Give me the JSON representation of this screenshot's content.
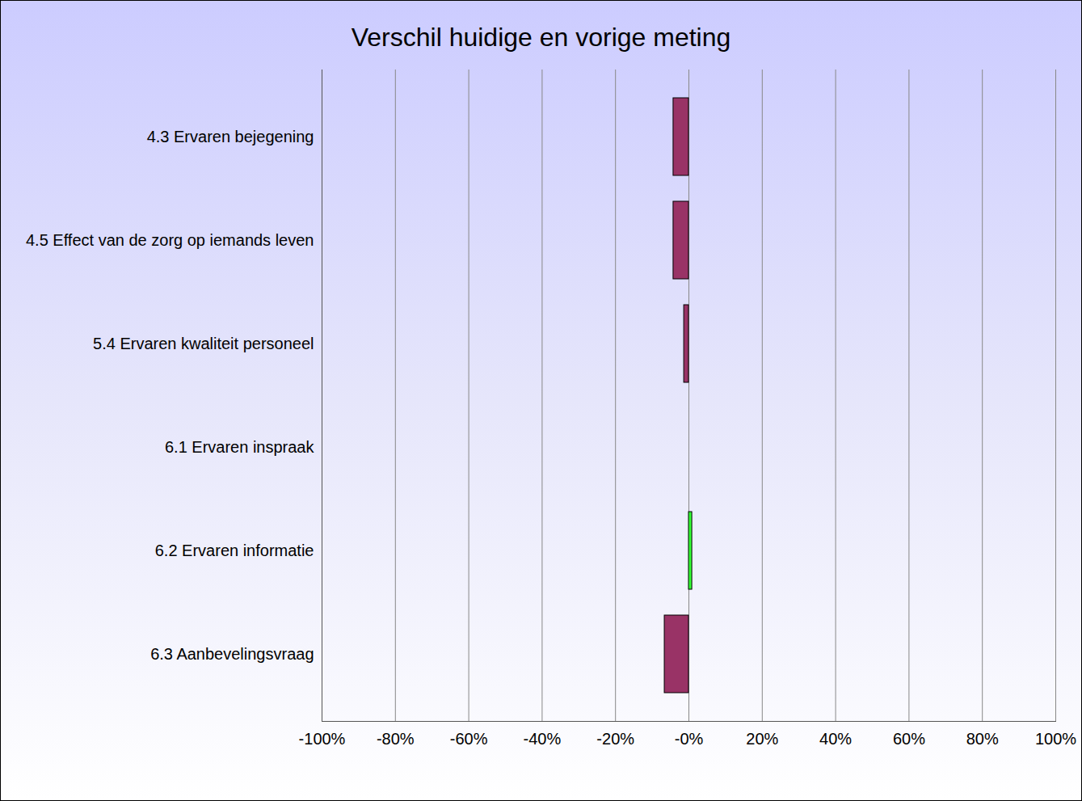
{
  "chart_data": {
    "type": "bar",
    "title": "Verschil huidige en vorige meting",
    "orientation": "horizontal",
    "categories": [
      "4.3 Ervaren bejegening",
      "4.5 Effect van de zorg op iemands leven",
      "5.4 Ervaren kwaliteit personeel",
      "6.1 Ervaren inspraak",
      "6.2 Ervaren informatie",
      "6.3 Aanbevelingsvraag"
    ],
    "values": [
      -4.2,
      -4.2,
      -1.3,
      0,
      0.9,
      -6.6
    ],
    "colors": [
      "#993366",
      "#993366",
      "#993366",
      "#993366",
      "#33ff33",
      "#993366"
    ],
    "xlim": [
      -100,
      100
    ],
    "xticks": [
      {
        "value": -100,
        "label": "-100%"
      },
      {
        "value": -80,
        "label": "-80%"
      },
      {
        "value": -60,
        "label": "-60%"
      },
      {
        "value": -40,
        "label": "-40%"
      },
      {
        "value": -20,
        "label": "-20%"
      },
      {
        "value": 0,
        "label": "-0%"
      },
      {
        "value": 20,
        "label": "20%"
      },
      {
        "value": 40,
        "label": "40%"
      },
      {
        "value": 60,
        "label": "60%"
      },
      {
        "value": 80,
        "label": "80%"
      },
      {
        "value": 100,
        "label": "100%"
      }
    ],
    "grid": true
  }
}
